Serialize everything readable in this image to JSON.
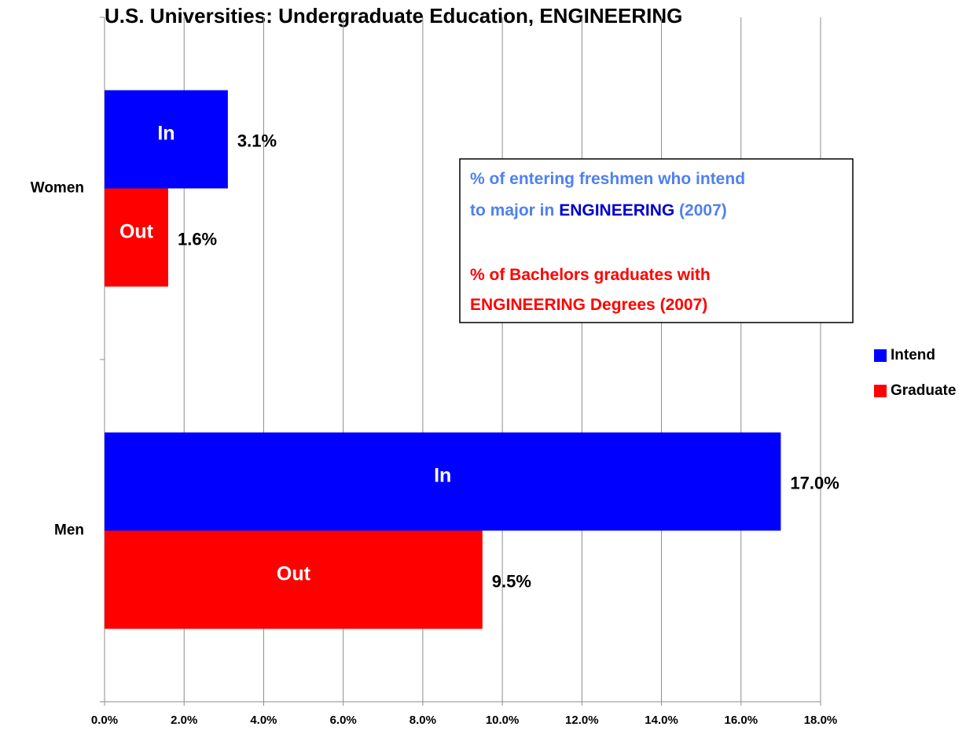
{
  "chart_data": {
    "type": "barh",
    "title": "U.S. Universities: Undergraduate Education, ENGINEERING",
    "categories": [
      "Women",
      "Men"
    ],
    "series": [
      {
        "name": "Intend",
        "color": "#0000ff",
        "values": [
          3.1,
          17.0
        ],
        "value_labels": [
          "3.1%",
          "17.0%"
        ],
        "bar_labels": [
          "In",
          "In"
        ]
      },
      {
        "name": "Graduate",
        "color": "#ff0000",
        "values": [
          1.6,
          9.5
        ],
        "value_labels": [
          "1.6%",
          "9.5%"
        ],
        "bar_labels": [
          "Out",
          "Out"
        ]
      }
    ],
    "xlim": [
      0,
      18
    ],
    "xticks": [
      {
        "value": 0,
        "label": "0.0%"
      },
      {
        "value": 2,
        "label": "2.0%"
      },
      {
        "value": 4,
        "label": "4.0%"
      },
      {
        "value": 6,
        "label": "6.0%"
      },
      {
        "value": 8,
        "label": "8.0%"
      },
      {
        "value": 10,
        "label": "10.0%"
      },
      {
        "value": 12,
        "label": "12.0%"
      },
      {
        "value": 14,
        "label": "14.0%"
      },
      {
        "value": 16,
        "label": "16.0%"
      },
      {
        "value": 18,
        "label": "18.0%"
      }
    ],
    "grid": true,
    "legend": "right",
    "annotation": {
      "lines": [
        [
          {
            "text": "% of entering freshmen who intend",
            "color": "#4f81ec"
          }
        ],
        [
          {
            "text": "to major in ",
            "color": "#4f81ec"
          },
          {
            "text": "ENGINEERING",
            "color": "#0000cc"
          },
          {
            "text": " (2007)",
            "color": "#4f81ec"
          }
        ],
        [
          {
            "text": "% of Bachelors graduates with",
            "color": "#ff0000"
          }
        ],
        [
          {
            "text": "ENGINEERING Degrees (2007)",
            "color": "#ff0000"
          }
        ]
      ]
    }
  }
}
